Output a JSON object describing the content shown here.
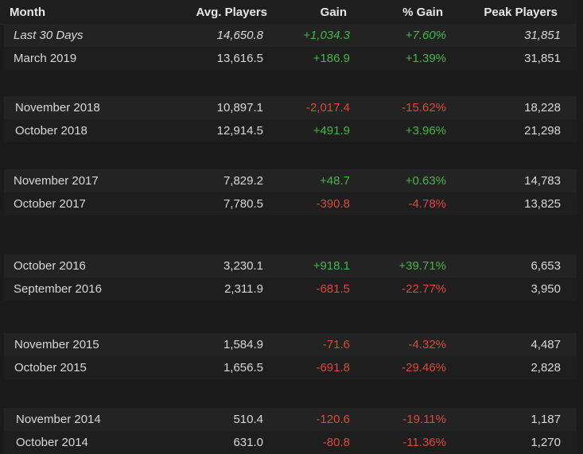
{
  "header": {
    "month": "Month",
    "avg_players": "Avg. Players",
    "gain": "Gain",
    "pct_gain": "% Gain",
    "peak_players": "Peak Players"
  },
  "groups": [
    {
      "rows": [
        {
          "month": "Last 30 Days",
          "avg": "14,650.8",
          "gain": "+1,034.3",
          "pct": "+7.60%",
          "peak": "31,851",
          "trend": "pos",
          "italic": true
        },
        {
          "month": "March 2019",
          "avg": "13,616.5",
          "gain": "+186.9",
          "pct": "+1.39%",
          "peak": "31,851",
          "trend": "pos"
        }
      ]
    },
    {
      "rows": [
        {
          "month": "November 2018",
          "avg": "10,897.1",
          "gain": "-2,017.4",
          "pct": "-15.62%",
          "peak": "18,228",
          "trend": "neg"
        },
        {
          "month": "October 2018",
          "avg": "12,914.5",
          "gain": "+491.9",
          "pct": "+3.96%",
          "peak": "21,298",
          "trend": "pos"
        }
      ]
    },
    {
      "rows": [
        {
          "month": "November 2017",
          "avg": "7,829.2",
          "gain": "+48.7",
          "pct": "+0.63%",
          "peak": "14,783",
          "trend": "pos"
        },
        {
          "month": "October 2017",
          "avg": "7,780.5",
          "gain": "-390.8",
          "pct": "-4.78%",
          "peak": "13,825",
          "trend": "neg"
        }
      ]
    },
    {
      "rows": [
        {
          "month": "October 2016",
          "avg": "3,230.1",
          "gain": "+918.1",
          "pct": "+39.71%",
          "peak": "6,653",
          "trend": "pos"
        },
        {
          "month": "September 2016",
          "avg": "2,311.9",
          "gain": "-681.5",
          "pct": "-22.77%",
          "peak": "3,950",
          "trend": "neg"
        }
      ]
    },
    {
      "rows": [
        {
          "month": "November 2015",
          "avg": "1,584.9",
          "gain": "-71.6",
          "pct": "-4.32%",
          "peak": "4,487",
          "trend": "neg"
        },
        {
          "month": "October 2015",
          "avg": "1,656.5",
          "gain": "-691.8",
          "pct": "-29.46%",
          "peak": "2,828",
          "trend": "neg"
        }
      ]
    },
    {
      "rows": [
        {
          "month": "November 2014",
          "avg": "510.4",
          "gain": "-120.6",
          "pct": "-19.11%",
          "peak": "1,187",
          "trend": "neg"
        },
        {
          "month": "October 2014",
          "avg": "631.0",
          "gain": "-80.8",
          "pct": "-11.36%",
          "peak": "1,270",
          "trend": "neg"
        }
      ]
    }
  ],
  "colors": {
    "positive": "#44b644",
    "negative": "#d84a3a"
  }
}
